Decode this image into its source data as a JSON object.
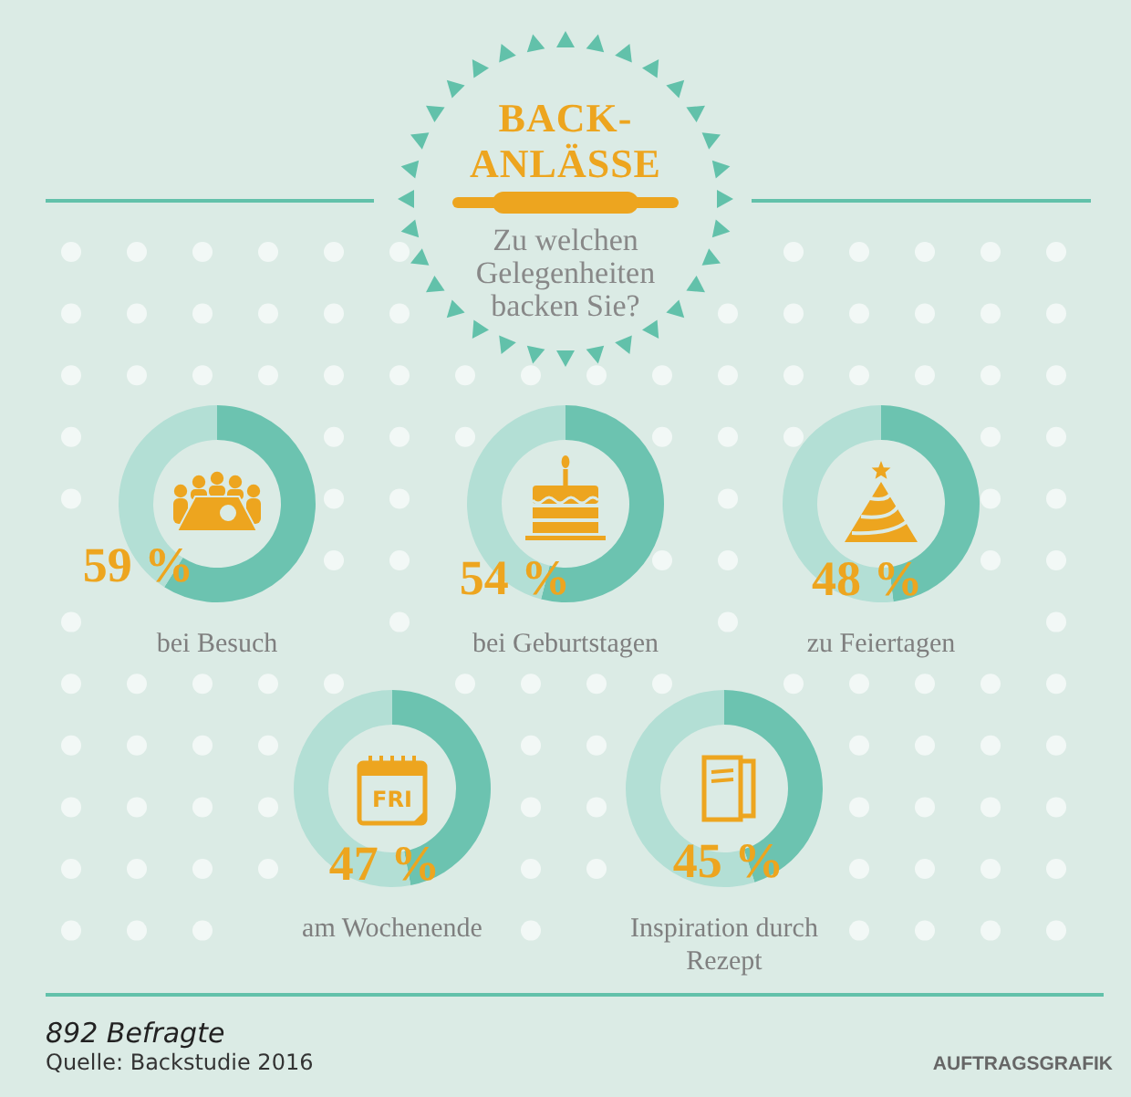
{
  "chart_data": [
    {
      "type": "other",
      "title": "BACK-ANLÄSSE",
      "subtitle": "Zu welchen Gelegenheiten backen Sie?"
    },
    {
      "type": "donut",
      "title": "bei Besuch",
      "categories": [
        null,
        null
      ],
      "values": [
        59,
        41
      ],
      "colors": [
        "#6cc3b0",
        "#b3dfd5"
      ],
      "value_labels": [
        "59 %",
        null
      ]
    },
    {
      "type": "donut",
      "title": "bei Geburtstagen",
      "categories": [
        null,
        null
      ],
      "values": [
        54,
        46
      ],
      "colors": [
        "#6cc3b0",
        "#b3dfd5"
      ],
      "value_labels": [
        "54 %",
        null
      ]
    },
    {
      "type": "donut",
      "title": "zu Feiertagen",
      "categories": [
        null,
        null
      ],
      "values": [
        48,
        52
      ],
      "colors": [
        "#6cc3b0",
        "#b3dfd5"
      ],
      "value_labels": [
        "48 %",
        null
      ]
    },
    {
      "type": "donut",
      "title": "am Wochenende",
      "categories": [
        null,
        null
      ],
      "values": [
        47,
        53
      ],
      "colors": [
        "#6cc3b0",
        "#b3dfd5"
      ],
      "value_labels": [
        "47 %",
        null
      ],
      "annotations": [
        "FRI"
      ]
    },
    {
      "type": "donut",
      "title": "Inspiration durch Rezept",
      "categories": [
        null,
        null
      ],
      "values": [
        45,
        55
      ],
      "colors": [
        "#6cc3b0",
        "#b3dfd5"
      ],
      "value_labels": [
        "45 %",
        null
      ]
    },
    {
      "type": "other",
      "annotations": [
        "892 Befragte",
        "Quelle: Backstudie 2016",
        "AUFTRAGSGRAFIK"
      ]
    }
  ]
}
